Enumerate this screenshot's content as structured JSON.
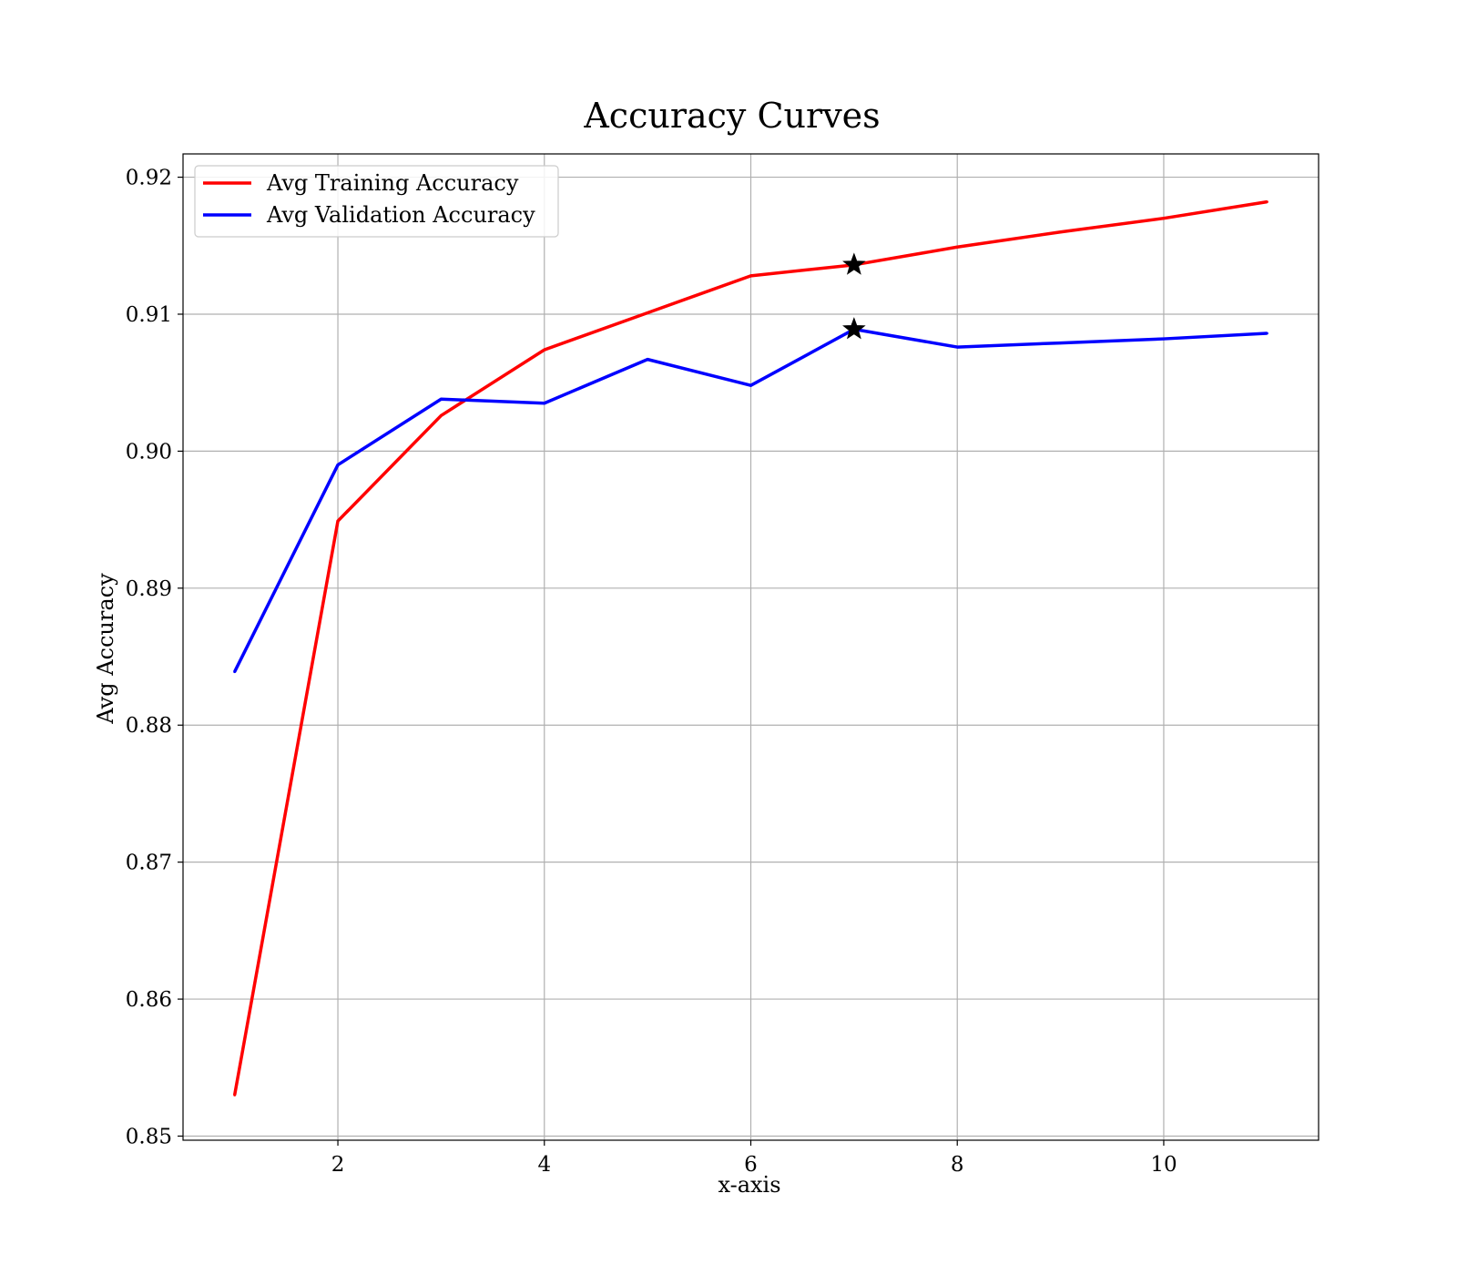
{
  "chart_data": {
    "type": "line",
    "title": "Accuracy Curves",
    "xlabel": "x-axis",
    "ylabel": "Avg Accuracy",
    "xlim": [
      0.5,
      11.5
    ],
    "ylim": [
      0.8497,
      0.9217
    ],
    "xticks": [
      2,
      4,
      6,
      8,
      10
    ],
    "xtick_labels": [
      "2",
      "4",
      "6",
      "8",
      "10"
    ],
    "yticks": [
      0.85,
      0.86,
      0.87,
      0.88,
      0.89,
      0.9,
      0.91,
      0.92
    ],
    "ytick_labels": [
      "0.85",
      "0.86",
      "0.87",
      "0.88",
      "0.89",
      "0.90",
      "0.91",
      "0.92"
    ],
    "grid": true,
    "legend_position": "top-left",
    "x": [
      1,
      2,
      3,
      4,
      5,
      6,
      7,
      8,
      9,
      10,
      11
    ],
    "series": [
      {
        "name": "Avg Training Accuracy",
        "color": "#ff0000",
        "values": [
          0.853,
          0.8949,
          0.9026,
          0.9074,
          0.9101,
          0.9128,
          0.9136,
          0.9149,
          0.916,
          0.917,
          0.9182
        ]
      },
      {
        "name": "Avg Validation Accuracy",
        "color": "#0000ff",
        "values": [
          0.8839,
          0.899,
          0.9038,
          0.9035,
          0.9067,
          0.9048,
          0.9089,
          0.9076,
          0.9079,
          0.9082,
          0.9086
        ]
      }
    ],
    "markers": [
      {
        "series": "Avg Training Accuracy",
        "x": 7,
        "y": 0.9136,
        "symbol": "star-icon",
        "color": "#000000"
      },
      {
        "series": "Avg Validation Accuracy",
        "x": 7,
        "y": 0.9089,
        "symbol": "star-icon",
        "color": "#000000"
      }
    ]
  }
}
